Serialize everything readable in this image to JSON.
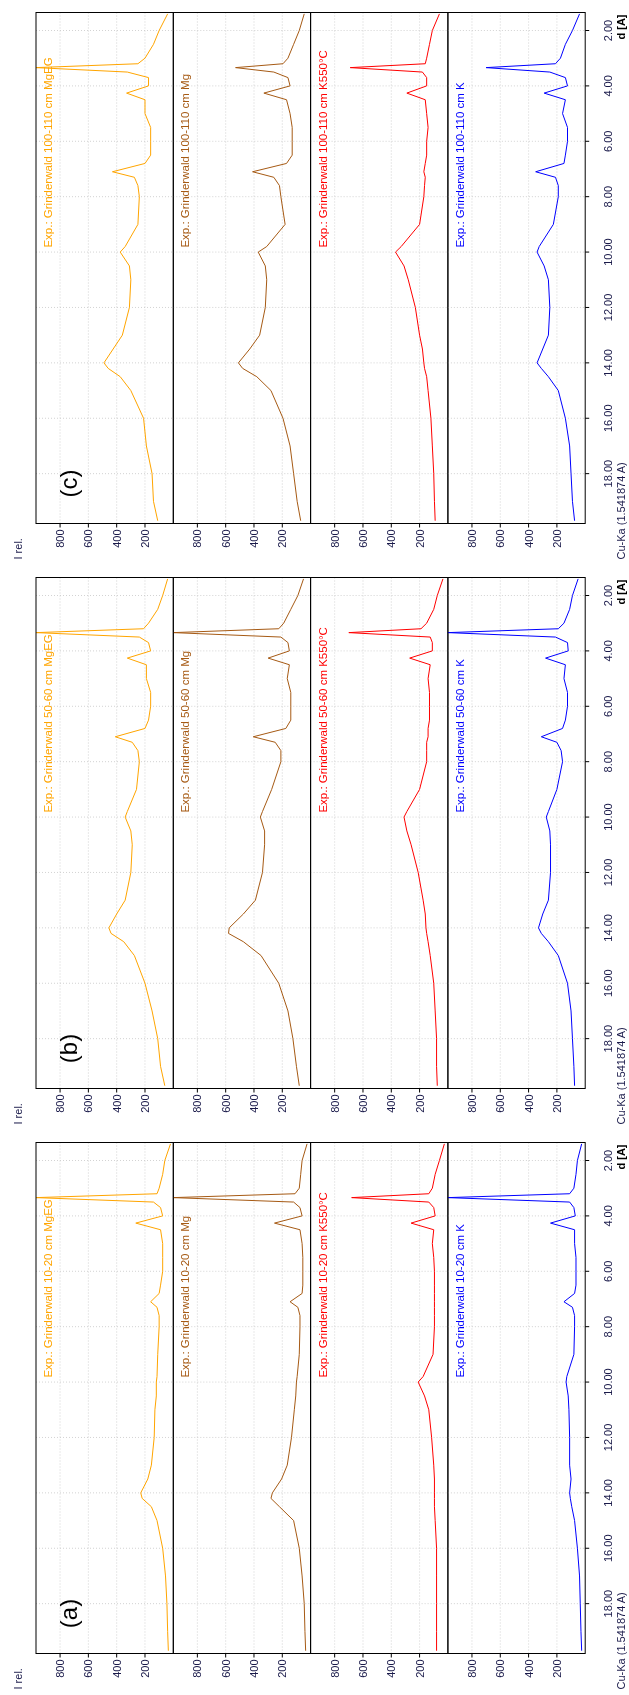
{
  "chart_data": [
    {
      "type": "line",
      "annotations": [
        "I rel.",
        "(c)"
      ],
      "xlim": [
        970,
        0
      ],
      "ylim": [
        19.8,
        1.35
      ],
      "xticks": [
        200,
        400,
        600,
        800
      ],
      "yticks": [
        2,
        4,
        6,
        8,
        10,
        12,
        14,
        16,
        18
      ],
      "grid": true,
      "tick_labels": "x",
      "series": [
        {
          "name": "Exp.: Grinderwald 100-110 cm MgEG",
          "color": "#ffa500",
          "x": [
            40,
            100,
            140,
            200,
            250,
            970,
            325,
            175,
            175,
            330,
            200,
            200,
            160,
            160,
            160,
            200,
            430,
            275,
            250,
            240,
            250,
            340,
            375,
            310,
            300,
            310,
            360,
            425,
            490,
            460,
            375,
            300,
            210,
            190,
            150,
            140,
            110
          ],
          "values": [
            1.4,
            2.0,
            2.5,
            3.0,
            3.2,
            3.34,
            3.5,
            3.7,
            4.0,
            4.26,
            4.5,
            5.0,
            5.5,
            6.0,
            6.5,
            6.8,
            7.1,
            7.3,
            7.6,
            8.0,
            9.0,
            9.8,
            10.0,
            10.5,
            11,
            12,
            13,
            13.5,
            14.0,
            14.2,
            14.5,
            15,
            16,
            17,
            18,
            19,
            19.7
          ]
        }
      ]
    },
    {
      "type": "line",
      "xlim": [
        970,
        0
      ],
      "ylim": [
        19.8,
        1.35
      ],
      "xticks": [
        200,
        400,
        600,
        800
      ],
      "yticks": [
        2,
        4,
        6,
        8,
        10,
        12,
        14,
        16,
        18
      ],
      "grid": true,
      "tick_labels": "x",
      "series": [
        {
          "name": "Exp.: Grinderwald 100-110 cm Mg",
          "color": "#a65a14",
          "x": [
            45,
            80,
            120,
            160,
            195,
            530,
            260,
            160,
            145,
            330,
            170,
            145,
            130,
            130,
            130,
            170,
            410,
            260,
            220,
            210,
            180,
            310,
            370,
            320,
            310,
            320,
            360,
            430,
            510,
            480,
            380,
            280,
            195,
            145,
            120,
            95,
            70
          ],
          "values": [
            1.4,
            2.0,
            2.5,
            3.0,
            3.2,
            3.34,
            3.5,
            3.7,
            4.0,
            4.26,
            4.5,
            5.0,
            5.5,
            6.0,
            6.5,
            6.8,
            7.1,
            7.3,
            7.6,
            8.0,
            9.0,
            9.8,
            10.0,
            10.5,
            11,
            12,
            13,
            13.5,
            14.0,
            14.2,
            14.5,
            15,
            16,
            17,
            18,
            19,
            19.7
          ]
        }
      ]
    },
    {
      "type": "line",
      "xlim": [
        970,
        0
      ],
      "ylim": [
        19.8,
        1.35
      ],
      "xticks": [
        200,
        400,
        600,
        800
      ],
      "yticks": [
        2,
        4,
        6,
        8,
        10,
        12,
        14,
        16,
        18
      ],
      "grid": true,
      "tick_labels": "x",
      "series": [
        {
          "name": "Exp.: Grinderwald 100-110 cm K550°C",
          "color": "#ff0000",
          "x": [
            60,
            110,
            130,
            150,
            160,
            690,
            180,
            150,
            150,
            290,
            160,
            150,
            140,
            150,
            150,
            160,
            170,
            160,
            165,
            170,
            200,
            330,
            370,
            310,
            280,
            230,
            200,
            180,
            170,
            165,
            150,
            140,
            120,
            110,
            100,
            95,
            90
          ],
          "values": [
            1.4,
            2.0,
            2.5,
            3.0,
            3.2,
            3.34,
            3.5,
            3.7,
            4.0,
            4.26,
            4.5,
            5.0,
            5.5,
            6.0,
            6.5,
            6.8,
            7.1,
            7.3,
            7.6,
            8.0,
            9.0,
            9.8,
            10.0,
            10.5,
            11,
            12,
            13,
            13.5,
            14.0,
            14.2,
            14.5,
            15,
            16,
            17,
            18,
            19,
            19.7
          ]
        }
      ]
    },
    {
      "type": "line",
      "ylabel": "d [A]",
      "annotations": [
        "Cu-Ka (1.541874 A)"
      ],
      "xlim": [
        970,
        0
      ],
      "ylim": [
        19.8,
        1.35
      ],
      "xticks": [
        200,
        400,
        600,
        800
      ],
      "yticks": [
        {
          "value": 2,
          "label": "2.00"
        },
        {
          "value": 4,
          "label": "4.00"
        },
        {
          "value": 6,
          "label": "6.00"
        },
        {
          "value": 8,
          "label": "8.00"
        },
        {
          "value": 10,
          "label": "10.00"
        },
        {
          "value": 12,
          "label": "12.00"
        },
        {
          "value": 14,
          "label": "14.00"
        },
        {
          "value": 16,
          "label": "16.00"
        },
        {
          "value": 18,
          "label": "18.00"
        }
      ],
      "grid": true,
      "series": [
        {
          "name": "Exp.: Grinderwald 100-110 cm K",
          "color": "#0000ff",
          "x": [
            40,
            90,
            140,
            175,
            210,
            700,
            250,
            140,
            125,
            290,
            140,
            160,
            125,
            125,
            140,
            150,
            350,
            210,
            190,
            190,
            225,
            325,
            340,
            290,
            260,
            250,
            260,
            300,
            340,
            310,
            260,
            190,
            140,
            110,
            100,
            90,
            75
          ],
          "values": [
            1.4,
            2.0,
            2.5,
            3.0,
            3.2,
            3.34,
            3.5,
            3.7,
            4.0,
            4.26,
            4.5,
            5.0,
            5.5,
            6.0,
            6.5,
            6.8,
            7.1,
            7.3,
            7.6,
            8.0,
            9.0,
            9.8,
            10.0,
            10.5,
            11,
            12,
            13,
            13.5,
            14.0,
            14.2,
            14.5,
            15,
            16,
            17,
            18,
            19,
            19.7
          ]
        }
      ]
    },
    {
      "type": "line",
      "annotations": [
        "I rel.",
        "(b)"
      ],
      "xlim": [
        970,
        0
      ],
      "ylim": [
        19.8,
        1.35
      ],
      "xticks": [
        200,
        400,
        600,
        800
      ],
      "yticks": [
        2,
        4,
        6,
        8,
        10,
        12,
        14,
        16,
        18
      ],
      "grid": true,
      "tick_labels": "x",
      "series": [
        {
          "name": "Exp.: Grinderwald 50-60 cm MgEG",
          "color": "#ffa500",
          "x": [
            40,
            75,
            110,
            175,
            210,
            970,
            240,
            175,
            160,
            325,
            190,
            190,
            160,
            160,
            175,
            200,
            410,
            290,
            250,
            240,
            260,
            325,
            340,
            300,
            290,
            300,
            340,
            400,
            455,
            440,
            350,
            275,
            200,
            150,
            110,
            90,
            60
          ],
          "values": [
            1.4,
            2.0,
            2.5,
            3.0,
            3.2,
            3.34,
            3.5,
            3.7,
            4.0,
            4.26,
            4.5,
            5.0,
            5.5,
            6.0,
            6.5,
            6.8,
            7.1,
            7.3,
            7.6,
            8.0,
            9.0,
            9.8,
            10.0,
            10.5,
            11,
            12,
            13,
            13.5,
            14.0,
            14.2,
            14.5,
            15,
            16,
            17,
            18,
            19,
            19.7
          ]
        }
      ]
    },
    {
      "type": "line",
      "xlim": [
        970,
        0
      ],
      "ylim": [
        19.8,
        1.35
      ],
      "xticks": [
        200,
        400,
        600,
        800
      ],
      "yticks": [
        2,
        4,
        6,
        8,
        10,
        12,
        14,
        16,
        18
      ],
      "grid": true,
      "tick_labels": "x",
      "series": [
        {
          "name": "Exp.: Grinderwald 50-60 cm Mg",
          "color": "#a65a14",
          "x": [
            50,
            90,
            140,
            190,
            225,
            970,
            210,
            160,
            150,
            300,
            150,
            165,
            140,
            140,
            140,
            175,
            405,
            250,
            210,
            210,
            275,
            340,
            355,
            325,
            325,
            340,
            390,
            475,
            575,
            580,
            475,
            350,
            225,
            160,
            125,
            100,
            80
          ],
          "values": [
            1.4,
            2.0,
            2.5,
            3.0,
            3.2,
            3.34,
            3.5,
            3.7,
            4.0,
            4.26,
            4.5,
            5.0,
            5.5,
            6.0,
            6.5,
            6.8,
            7.1,
            7.3,
            7.6,
            8.0,
            9.0,
            9.8,
            10.0,
            10.5,
            11,
            12,
            13,
            13.5,
            14.0,
            14.2,
            14.5,
            15,
            16,
            17,
            18,
            19,
            19.7
          ]
        }
      ]
    },
    {
      "type": "line",
      "xlim": [
        970,
        0
      ],
      "ylim": [
        19.8,
        1.35
      ],
      "xticks": [
        200,
        400,
        600,
        800
      ],
      "yticks": [
        2,
        4,
        6,
        8,
        10,
        12,
        14,
        16,
        18
      ],
      "grid": true,
      "tick_labels": "x",
      "series": [
        {
          "name": "Exp.: Grinderwald 50-60 cm K550°C",
          "color": "#ff0000",
          "x": [
            35,
            75,
            100,
            150,
            190,
            700,
            125,
            110,
            110,
            270,
            125,
            140,
            130,
            130,
            130,
            140,
            140,
            150,
            150,
            150,
            200,
            290,
            310,
            290,
            260,
            210,
            175,
            160,
            155,
            150,
            140,
            125,
            100,
            90,
            80,
            80,
            75
          ],
          "values": [
            1.4,
            2.0,
            2.5,
            3.0,
            3.2,
            3.34,
            3.5,
            3.7,
            4.0,
            4.26,
            4.5,
            5.0,
            5.5,
            6.0,
            6.5,
            6.8,
            7.1,
            7.3,
            7.6,
            8.0,
            9.0,
            9.8,
            10.0,
            10.5,
            11,
            12,
            13,
            13.5,
            14.0,
            14.2,
            14.5,
            15,
            16,
            17,
            18,
            19,
            19.7
          ]
        }
      ]
    },
    {
      "type": "line",
      "ylabel": "d [A]",
      "annotations": [
        "Cu-Ka (1.541874 A)"
      ],
      "xlim": [
        970,
        0
      ],
      "ylim": [
        19.8,
        1.35
      ],
      "xticks": [
        200,
        400,
        600,
        800
      ],
      "yticks": [
        {
          "value": 2,
          "label": "2.00"
        },
        {
          "value": 4,
          "label": "4.00"
        },
        {
          "value": 6,
          "label": "6.00"
        },
        {
          "value": 8,
          "label": "8.00"
        },
        {
          "value": 10,
          "label": "10.00"
        },
        {
          "value": 12,
          "label": "12.00"
        },
        {
          "value": 14,
          "label": "14.00"
        },
        {
          "value": 16,
          "label": "16.00"
        },
        {
          "value": 18,
          "label": "18.00"
        }
      ],
      "grid": true,
      "series": [
        {
          "name": "Exp.: Grinderwald 50-60 cm K",
          "color": "#0000ff",
          "x": [
            50,
            90,
            110,
            150,
            190,
            970,
            210,
            125,
            120,
            280,
            140,
            150,
            125,
            125,
            140,
            160,
            310,
            200,
            170,
            160,
            200,
            260,
            275,
            250,
            245,
            245,
            260,
            300,
            330,
            310,
            260,
            190,
            125,
            100,
            90,
            80,
            75
          ],
          "values": [
            1.4,
            2.0,
            2.5,
            3.0,
            3.2,
            3.34,
            3.5,
            3.7,
            4.0,
            4.26,
            4.5,
            5.0,
            5.5,
            6.0,
            6.5,
            6.8,
            7.1,
            7.3,
            7.6,
            8.0,
            9.0,
            9.8,
            10.0,
            10.5,
            11,
            12,
            13,
            13.5,
            14.0,
            14.2,
            14.5,
            15,
            16,
            17,
            18,
            19,
            19.7
          ]
        }
      ]
    },
    {
      "type": "line",
      "annotations": [
        "I rel.",
        "(a)"
      ],
      "xlim": [
        970,
        0
      ],
      "ylim": [
        19.8,
        1.35
      ],
      "xticks": [
        200,
        400,
        600,
        800
      ],
      "yticks": [
        2,
        4,
        6,
        8,
        10,
        12,
        14,
        16,
        18
      ],
      "grid": true,
      "tick_labels": "x",
      "series": [
        {
          "name": "Exp.: Grinderwald 10-20 cm MgEG",
          "color": "#ffa500",
          "x": [
            20,
            60,
            75,
            100,
            115,
            970,
            140,
            90,
            75,
            265,
            90,
            75,
            75,
            75,
            90,
            100,
            160,
            115,
            100,
            100,
            110,
            115,
            120,
            120,
            130,
            135,
            155,
            180,
            230,
            220,
            155,
            115,
            75,
            55,
            45,
            40,
            35
          ],
          "values": [
            1.4,
            2.0,
            2.5,
            3.0,
            3.2,
            3.34,
            3.5,
            3.7,
            4.0,
            4.26,
            4.5,
            5.0,
            5.5,
            6.0,
            6.5,
            6.8,
            7.1,
            7.3,
            7.6,
            8.0,
            9.0,
            9.8,
            10.0,
            10.5,
            11,
            12,
            13,
            13.5,
            14.0,
            14.2,
            14.5,
            15,
            16,
            17,
            18,
            19,
            19.7
          ]
        }
      ]
    },
    {
      "type": "line",
      "xlim": [
        970,
        0
      ],
      "ylim": [
        19.8,
        1.35
      ],
      "xticks": [
        200,
        400,
        600,
        800
      ],
      "yticks": [
        2,
        4,
        6,
        8,
        10,
        12,
        14,
        16,
        18
      ],
      "grid": true,
      "tick_labels": "x",
      "series": [
        {
          "name": "Exp.: Grinderwald 10-20 cm Mg",
          "color": "#a65a14",
          "x": [
            25,
            60,
            70,
            80,
            110,
            970,
            120,
            75,
            60,
            255,
            75,
            60,
            55,
            55,
            55,
            60,
            145,
            90,
            75,
            75,
            80,
            95,
            100,
            105,
            115,
            135,
            165,
            205,
            270,
            280,
            220,
            120,
            80,
            60,
            45,
            40,
            35
          ],
          "values": [
            1.4,
            2.0,
            2.5,
            3.0,
            3.2,
            3.34,
            3.5,
            3.7,
            4.0,
            4.26,
            4.5,
            5.0,
            5.5,
            6.0,
            6.5,
            6.8,
            7.1,
            7.3,
            7.6,
            8.0,
            9.0,
            9.8,
            10.0,
            10.5,
            11,
            12,
            13,
            13.5,
            14.0,
            14.2,
            14.5,
            15,
            16,
            17,
            18,
            19,
            19.7
          ]
        }
      ]
    },
    {
      "type": "line",
      "xlim": [
        970,
        0
      ],
      "ylim": [
        19.8,
        1.35
      ],
      "xticks": [
        200,
        400,
        600,
        800
      ],
      "yticks": [
        2,
        4,
        6,
        8,
        10,
        12,
        14,
        16,
        18
      ],
      "grid": true,
      "tick_labels": "x",
      "series": [
        {
          "name": "Exp.: Grinderwald 10-20 cm K550°C",
          "color": "#ff0000",
          "x": [
            25,
            60,
            90,
            110,
            135,
            680,
            135,
            100,
            90,
            260,
            100,
            110,
            100,
            95,
            95,
            95,
            95,
            95,
            95,
            95,
            105,
            175,
            210,
            165,
            135,
            115,
            100,
            95,
            95,
            95,
            95,
            90,
            80,
            80,
            80,
            80,
            80
          ],
          "values": [
            1.4,
            2.0,
            2.5,
            3.0,
            3.2,
            3.34,
            3.5,
            3.7,
            4.0,
            4.26,
            4.5,
            5.0,
            5.5,
            6.0,
            6.5,
            6.8,
            7.1,
            7.3,
            7.6,
            8.0,
            9.0,
            9.8,
            10.0,
            10.5,
            11,
            12,
            13,
            13.5,
            14.0,
            14.2,
            14.5,
            15,
            16,
            17,
            18,
            19,
            19.7
          ]
        }
      ]
    },
    {
      "type": "line",
      "ylabel": "d [A]",
      "annotations": [
        "Cu-Ka (1.541874 A)"
      ],
      "xlim": [
        970,
        0
      ],
      "ylim": [
        19.8,
        1.35
      ],
      "xticks": [
        200,
        400,
        600,
        800
      ],
      "yticks": [
        {
          "value": 2,
          "label": "2.00"
        },
        {
          "value": 4,
          "label": "4.00"
        },
        {
          "value": 6,
          "label": "6.00"
        },
        {
          "value": 8,
          "label": "8.00"
        },
        {
          "value": 10,
          "label": "10.00"
        },
        {
          "value": 12,
          "label": "12.00"
        },
        {
          "value": 14,
          "label": "14.00"
        },
        {
          "value": 16,
          "label": "16.00"
        },
        {
          "value": 18,
          "label": "18.00"
        }
      ],
      "grid": true,
      "series": [
        {
          "name": "Exp.: Grinderwald 10-20 cm K",
          "color": "#0000ff",
          "x": [
            25,
            55,
            65,
            80,
            110,
            970,
            110,
            80,
            70,
            245,
            75,
            75,
            65,
            65,
            65,
            75,
            150,
            90,
            75,
            75,
            80,
            130,
            135,
            120,
            115,
            110,
            110,
            100,
            110,
            105,
            95,
            75,
            55,
            40,
            35,
            30,
            25
          ],
          "values": [
            1.4,
            2.0,
            2.5,
            3.0,
            3.2,
            3.34,
            3.5,
            3.7,
            4.0,
            4.26,
            4.5,
            5.0,
            5.5,
            6.0,
            6.5,
            6.8,
            7.1,
            7.3,
            7.6,
            8.0,
            9.0,
            9.8,
            10.0,
            10.5,
            11,
            12,
            13,
            13.5,
            14.0,
            14.2,
            14.5,
            15,
            16,
            17,
            18,
            19,
            19.7
          ]
        }
      ]
    }
  ]
}
